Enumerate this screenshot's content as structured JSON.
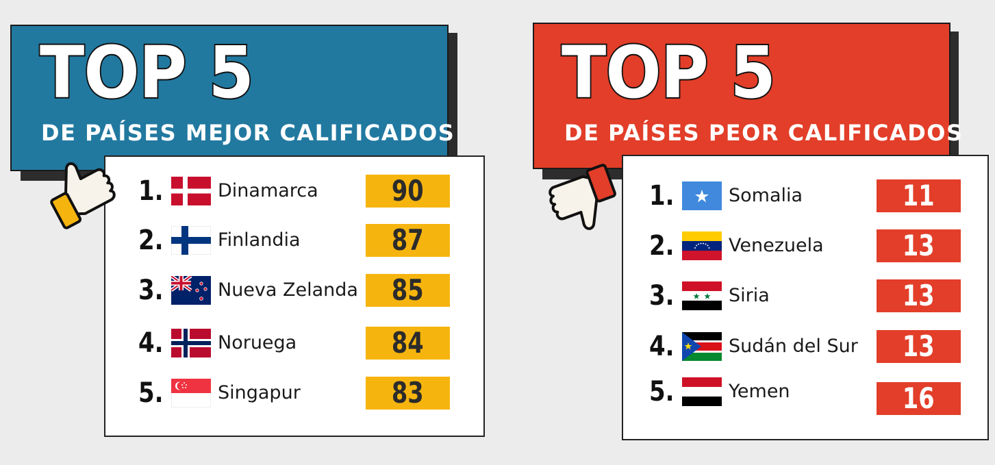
{
  "colors": {
    "best_banner": "#2279a0",
    "worst_banner": "#e23e29",
    "best_score": "#f6b40e",
    "worst_score": "#e23e29"
  },
  "best": {
    "heading": "TOP 5",
    "subtitle": "DE PAÍSES MEJOR CALIFICADOS",
    "icon": "thumbs-up-icon",
    "items": [
      {
        "rank": "1.",
        "country": "Dinamarca",
        "score": "90",
        "flag": "denmark-flag-icon"
      },
      {
        "rank": "2.",
        "country": "Finlandia",
        "score": "87",
        "flag": "finland-flag-icon"
      },
      {
        "rank": "3.",
        "country": "Nueva Zelanda",
        "score": "85",
        "flag": "new-zealand-flag-icon"
      },
      {
        "rank": "4.",
        "country": "Noruega",
        "score": "84",
        "flag": "norway-flag-icon"
      },
      {
        "rank": "5.",
        "country": "Singapur",
        "score": "83",
        "flag": "singapore-flag-icon"
      }
    ]
  },
  "worst": {
    "heading": "TOP 5",
    "subtitle": "DE PAÍSES PEOR CALIFICADOS",
    "icon": "thumbs-down-icon",
    "items": [
      {
        "rank": "1.",
        "country": "Somalia",
        "score": "11",
        "flag": "somalia-flag-icon"
      },
      {
        "rank": "2.",
        "country": "Venezuela",
        "score": "13",
        "flag": "venezuela-flag-icon"
      },
      {
        "rank": "3.",
        "country": "Siria",
        "score": "13",
        "flag": "syria-flag-icon"
      },
      {
        "rank": "4.",
        "country": "Sudán del Sur",
        "score": "13",
        "flag": "south-sudan-flag-icon"
      },
      {
        "rank": "5.",
        "country": "Yemen",
        "score": "16",
        "flag": "yemen-flag-icon"
      }
    ]
  }
}
